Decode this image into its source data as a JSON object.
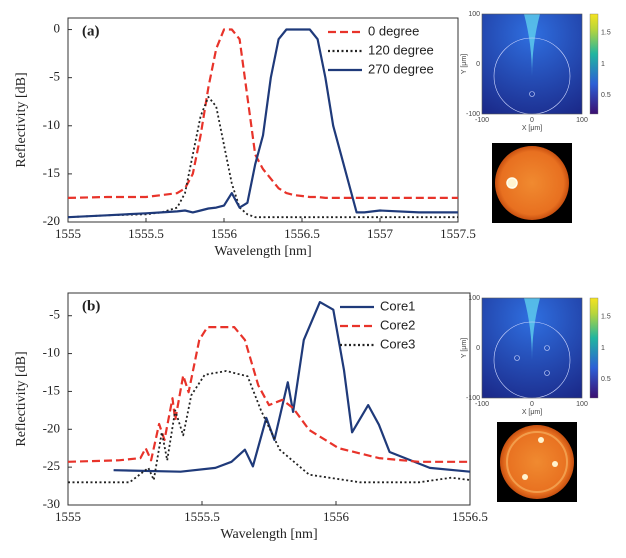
{
  "chart_data": [
    {
      "type": "line",
      "title": "(a)",
      "x_label": "Wavelength [nm]",
      "y_label": "Reflectivity [dB]",
      "xlim": [
        1555,
        1557.5
      ],
      "xticks": [
        1555,
        1555.5,
        1556,
        1556.5,
        1557,
        1557.5
      ],
      "ylim": [
        -20,
        1.2
      ],
      "yticks": [
        0,
        -5,
        -10,
        -15,
        -20
      ],
      "legend": "upper right",
      "x": [
        1555,
        1555.25,
        1555.5,
        1555.6,
        1555.7,
        1555.75,
        1555.8,
        1555.85,
        1555.9,
        1555.95,
        1556,
        1556.05,
        1556.1,
        1556.15,
        1556.2,
        1556.25,
        1556.3,
        1556.35,
        1556.4,
        1556.45,
        1556.5,
        1556.55,
        1556.6,
        1556.65,
        1556.7,
        1556.75,
        1556.8,
        1556.85,
        1556.9,
        1557,
        1557.25,
        1557.5
      ],
      "series": [
        {
          "name": "0 degree",
          "color": "#e8332a",
          "style": "dashed",
          "values": [
            -17.5,
            -17.4,
            -17.4,
            -17.2,
            -17,
            -16.5,
            -15,
            -11,
            -6,
            -2,
            0,
            0,
            -1,
            -7,
            -13,
            -14.5,
            -15.5,
            -16.5,
            -17,
            -17.2,
            -17.3,
            -17.4,
            -17.4,
            -17.5,
            -17.5,
            -17.5,
            -17.5,
            -17.5,
            -17.5,
            -17.5,
            -17.5,
            -17.5
          ]
        },
        {
          "name": "120 degree",
          "color": "#222222",
          "style": "dotted",
          "values": [
            -19.5,
            -19.3,
            -19.2,
            -19,
            -18.5,
            -17,
            -13,
            -9,
            -7,
            -8,
            -12,
            -16,
            -18.5,
            -19.2,
            -19.5,
            -19.5,
            -19.5,
            -19.5,
            -19.5,
            -19.5,
            -19.5,
            -19.5,
            -19.5,
            -19.5,
            -19.5,
            -19.5,
            -19.5,
            -19.5,
            -19.5,
            -19.5,
            -19.5,
            -19.5
          ]
        },
        {
          "name": "270 degree",
          "color": "#1f3a7a",
          "style": "solid",
          "values": [
            -19.5,
            -19.3,
            -19.1,
            -19,
            -18.9,
            -18.8,
            -19,
            -18.8,
            -18.6,
            -18.5,
            -18.3,
            -17,
            -18.5,
            -18,
            -14,
            -11,
            -5,
            -1,
            0,
            0,
            0,
            0,
            -1,
            -5,
            -10,
            -13,
            -16,
            -19,
            -19,
            -18.8,
            -19,
            -19
          ]
        }
      ]
    },
    {
      "type": "line",
      "title": "(b)",
      "x_label": "Wavelength [nm]",
      "y_label": "Reflectivity [dB]",
      "xlim": [
        1555,
        1556.5
      ],
      "xticks": [
        1555,
        1555.5,
        1556,
        1556.5
      ],
      "ylim": [
        -30,
        -2
      ],
      "yticks": [
        -5,
        -10,
        -15,
        -20,
        -25,
        -30
      ],
      "legend": "upper right",
      "series": [
        {
          "name": "Core1",
          "color": "#1f3a7a",
          "style": "solid",
          "x": [
            1555.17,
            1555.42,
            1555.55,
            1555.61,
            1555.66,
            1555.69,
            1555.74,
            1555.77,
            1555.82,
            1555.84,
            1555.88,
            1555.94,
            1555.99,
            1556.03,
            1556.06,
            1556.12,
            1556.16,
            1556.2,
            1556.35,
            1556.5
          ],
          "values": [
            -25.4,
            -25.6,
            -25.1,
            -24.3,
            -22.7,
            -24.9,
            -18.5,
            -21.4,
            -13.8,
            -17.7,
            -8.2,
            -3.2,
            -4.2,
            -12.2,
            -20.4,
            -16.8,
            -19.4,
            -23,
            -25.1,
            -25.6
          ]
        },
        {
          "name": "Core2",
          "color": "#e8332a",
          "style": "dashed",
          "x": [
            1555,
            1555.19,
            1555.27,
            1555.29,
            1555.31,
            1555.34,
            1555.36,
            1555.39,
            1555.4,
            1555.43,
            1555.45,
            1555.49,
            1555.52,
            1555.62,
            1555.66,
            1555.71,
            1555.75,
            1555.8,
            1555.84,
            1555.9,
            1556.01,
            1556.16,
            1556.31,
            1556.5
          ],
          "values": [
            -24.3,
            -24.1,
            -23.8,
            -22.5,
            -24.1,
            -19.3,
            -21.4,
            -15.9,
            -18.8,
            -12.9,
            -15.1,
            -8.2,
            -6.5,
            -6.5,
            -8.2,
            -14.2,
            -16.8,
            -16.1,
            -17.2,
            -20.1,
            -22.5,
            -23.8,
            -24.3,
            -24.3
          ]
        },
        {
          "name": "Core3",
          "color": "#222222",
          "style": "dotted",
          "x": [
            1555,
            1555.23,
            1555.3,
            1555.32,
            1555.35,
            1555.37,
            1555.4,
            1555.43,
            1555.46,
            1555.51,
            1555.59,
            1555.67,
            1555.72,
            1555.79,
            1555.9,
            1556.09,
            1556.31,
            1556.43,
            1556.5
          ],
          "values": [
            -27,
            -27,
            -25.1,
            -26.7,
            -20.4,
            -24.1,
            -17.5,
            -20.8,
            -15.5,
            -12.8,
            -12.3,
            -13,
            -17.5,
            -22.7,
            -26,
            -27,
            -27,
            -26.4,
            -26.7
          ]
        }
      ]
    }
  ],
  "insets": [
    {
      "x_label": "X [μm]",
      "y_label": "Y [μm]",
      "xlim": [
        -100,
        100
      ],
      "xticks": [
        -100,
        0,
        100
      ],
      "ylim": [
        -100,
        100
      ],
      "yticks": [
        100,
        0,
        -100
      ],
      "colorbar_lim": [
        0.2,
        1.8
      ],
      "colorbar_ticks": [
        1.5,
        1,
        0.5
      ]
    },
    {
      "x_label": "X [μm]",
      "y_label": "Y [μm]",
      "xlim": [
        -100,
        100
      ],
      "xticks": [
        -100,
        0,
        100
      ],
      "ylim": [
        -100,
        100
      ],
      "yticks": [
        100,
        0,
        -100
      ],
      "colorbar_lim": [
        0.2,
        1.8
      ],
      "colorbar_ticks": [
        1.5,
        1,
        0.5
      ]
    }
  ]
}
